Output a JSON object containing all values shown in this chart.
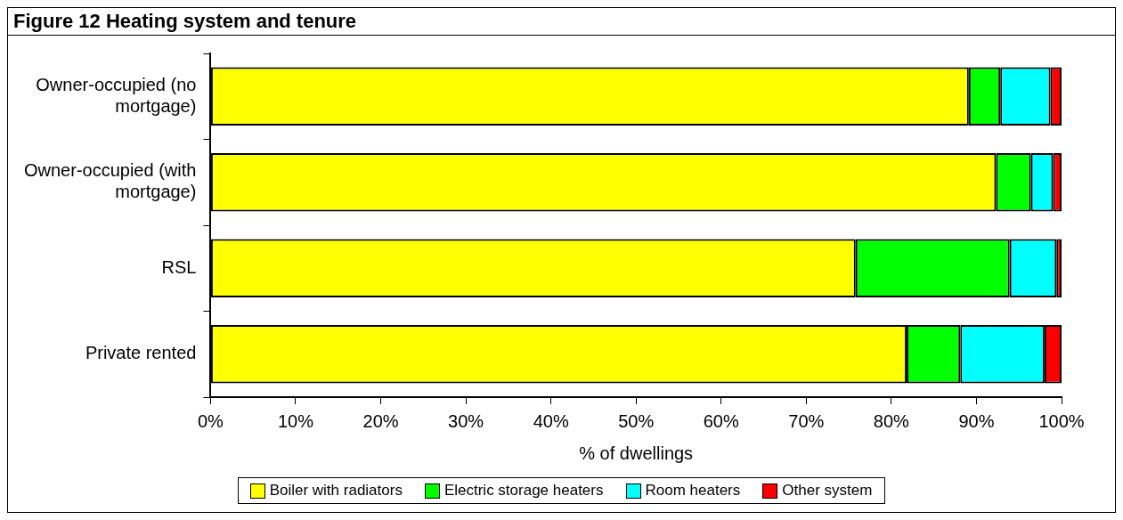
{
  "chart_data": {
    "type": "bar",
    "title": "Figure 12 Heating system and tenure",
    "orientation": "horizontal",
    "stacked": true,
    "xlabel": "% of dwellings",
    "categories": [
      "Owner-occupied (no mortgage)",
      "Owner-occupied (with mortgage)",
      "RSL",
      "Private rented"
    ],
    "series": [
      {
        "name": "Boiler with radiators",
        "color": "#ffff00",
        "values": [
          89.1,
          92.3,
          75.8,
          81.8
        ]
      },
      {
        "name": "Electric storage heaters",
        "color": "#00ff00",
        "values": [
          3.7,
          4.1,
          18.1,
          6.3
        ]
      },
      {
        "name": "Room heaters",
        "color": "#00ffff",
        "values": [
          5.9,
          2.6,
          5.5,
          9.9
        ]
      },
      {
        "name": "Other system",
        "color": "#ff0000",
        "values": [
          1.3,
          1.0,
          0.6,
          2.0
        ]
      }
    ],
    "xlim": [
      0,
      100
    ],
    "xticks": [
      {
        "value": 0,
        "label": "0%"
      },
      {
        "value": 10,
        "label": "10%"
      },
      {
        "value": 20,
        "label": "20%"
      },
      {
        "value": 30,
        "label": "30%"
      },
      {
        "value": 40,
        "label": "40%"
      },
      {
        "value": 50,
        "label": "50%"
      },
      {
        "value": 60,
        "label": "60%"
      },
      {
        "value": 70,
        "label": "70%"
      },
      {
        "value": 80,
        "label": "80%"
      },
      {
        "value": 90,
        "label": "90%"
      },
      {
        "value": 100,
        "label": "100%"
      }
    ],
    "grid": false,
    "legend": "bottom"
  }
}
